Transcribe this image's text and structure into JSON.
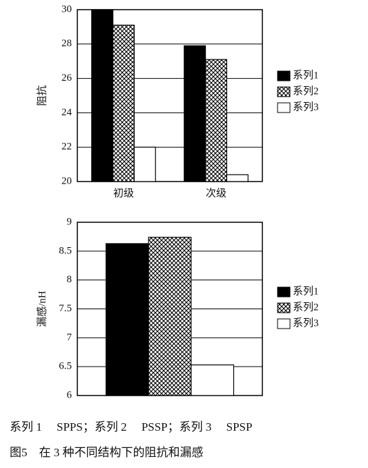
{
  "chart_data": [
    {
      "type": "bar",
      "ylabel": "阻抗",
      "categories": [
        "初级",
        "次级"
      ],
      "series": [
        {
          "name": "系列1",
          "color": "#000000",
          "values": [
            30,
            27.9
          ]
        },
        {
          "name": "系列2",
          "color": "#ffffff",
          "pattern": "crosshatch",
          "values": [
            29.1,
            27.1
          ]
        },
        {
          "name": "系列3",
          "color": "#ffffff",
          "values": [
            22,
            20.4
          ]
        }
      ],
      "ylim": [
        20,
        30
      ],
      "yticks": [
        20,
        22,
        24,
        26,
        28,
        30
      ],
      "grid": true,
      "legend": "right"
    },
    {
      "type": "bar",
      "ylabel": "漏感/nH",
      "categories": [
        null
      ],
      "series": [
        {
          "name": "系列1",
          "color": "#000000",
          "values": [
            8.63
          ]
        },
        {
          "name": "系列2",
          "color": "#ffffff",
          "pattern": "crosshatch",
          "values": [
            8.74
          ]
        },
        {
          "name": "系列3",
          "color": "#ffffff",
          "values": [
            6.53
          ]
        }
      ],
      "ylim": [
        6,
        9
      ],
      "yticks": [
        6,
        6.5,
        7,
        7.5,
        8,
        8.5,
        9
      ],
      "grid": true,
      "legend": "right"
    }
  ],
  "caption": {
    "legend_note": "系列 1　 SPPS；系列 2　 PSSP；系列 3　 SPSP",
    "figure": "图5　在 3 种不同结构下的阻抗和漏感"
  }
}
